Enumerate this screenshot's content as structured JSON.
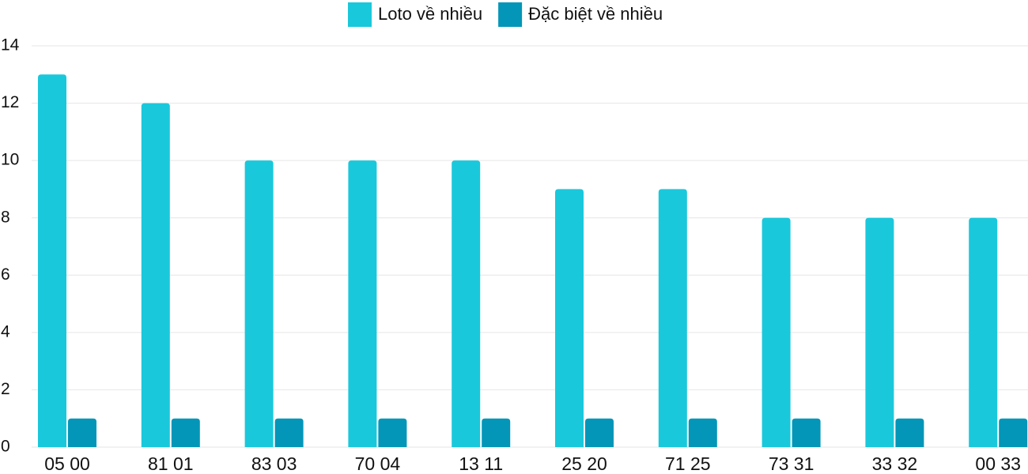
{
  "chart_data": {
    "type": "bar",
    "categories": [
      "05 00",
      "81 01",
      "83 03",
      "70 04",
      "13 11",
      "25 20",
      "71 25",
      "73 31",
      "33 32",
      "00 33"
    ],
    "series": [
      {
        "name": "Loto về nhiều",
        "color": "#1ac8db",
        "values": [
          13,
          12,
          10,
          10,
          10,
          9,
          9,
          8,
          8,
          8
        ]
      },
      {
        "name": "Đặc biệt về nhiều",
        "color": "#0396b8",
        "values": [
          1,
          1,
          1,
          1,
          1,
          1,
          1,
          1,
          1,
          1
        ]
      }
    ],
    "ylim": [
      0,
      14
    ],
    "yticks": [
      0,
      2,
      4,
      6,
      8,
      10,
      12,
      14
    ],
    "grid": true,
    "legend": "top"
  }
}
